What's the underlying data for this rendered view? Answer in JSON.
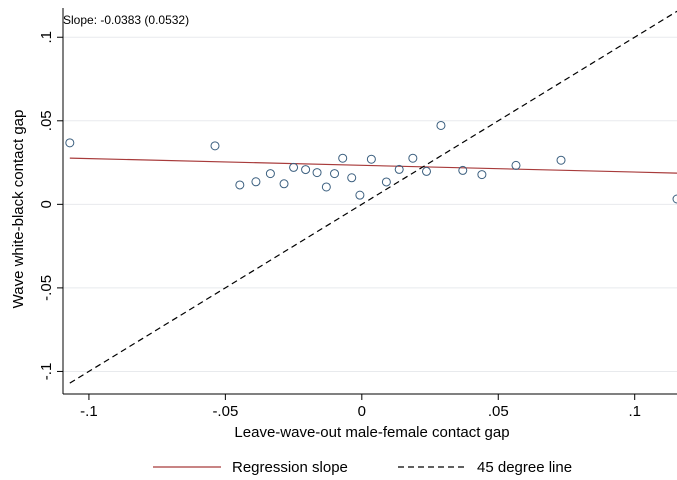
{
  "chart_data": {
    "type": "scatter",
    "annotation": "Slope: -0.0383 (0.0532)",
    "xlabel": "Leave-wave-out male-female contact gap",
    "ylabel": "Wave white-black contact gap",
    "xlim": [
      -0.1095,
      0.1155
    ],
    "ylim": [
      -0.1135,
      0.1175
    ],
    "x_ticks": [
      {
        "value": -0.1,
        "label": "-.1"
      },
      {
        "value": -0.05,
        "label": "-.05"
      },
      {
        "value": 0,
        "label": "0"
      },
      {
        "value": 0.05,
        "label": ".05"
      },
      {
        "value": 0.1,
        "label": ".1"
      }
    ],
    "y_ticks": [
      {
        "value": -0.1,
        "label": "-.1"
      },
      {
        "value": -0.05,
        "label": "-.05"
      },
      {
        "value": 0,
        "label": "0"
      },
      {
        "value": 0.05,
        "label": ".05"
      },
      {
        "value": 0.1,
        "label": ".1"
      }
    ],
    "grid": true,
    "legend_position": "bottom",
    "points": [
      {
        "x": -0.107,
        "y": 0.0368
      },
      {
        "x": -0.0538,
        "y": 0.035
      },
      {
        "x": -0.0447,
        "y": 0.0116
      },
      {
        "x": -0.0388,
        "y": 0.0135
      },
      {
        "x": -0.0335,
        "y": 0.0184
      },
      {
        "x": -0.0285,
        "y": 0.0123
      },
      {
        "x": -0.025,
        "y": 0.0221
      },
      {
        "x": -0.0206,
        "y": 0.0208
      },
      {
        "x": -0.0164,
        "y": 0.019
      },
      {
        "x": -0.013,
        "y": 0.0104
      },
      {
        "x": -0.01,
        "y": 0.0184
      },
      {
        "x": -0.007,
        "y": 0.0276
      },
      {
        "x": -0.0037,
        "y": 0.0159
      },
      {
        "x": -0.0007,
        "y": 0.0055
      },
      {
        "x": 0.0035,
        "y": 0.027
      },
      {
        "x": 0.009,
        "y": 0.0134
      },
      {
        "x": 0.0137,
        "y": 0.0209
      },
      {
        "x": 0.0187,
        "y": 0.0276
      },
      {
        "x": 0.0237,
        "y": 0.0197
      },
      {
        "x": 0.029,
        "y": 0.0472
      },
      {
        "x": 0.037,
        "y": 0.0203
      },
      {
        "x": 0.044,
        "y": 0.0178
      },
      {
        "x": 0.0565,
        "y": 0.0233
      },
      {
        "x": 0.073,
        "y": 0.0264
      },
      {
        "x": 0.1155,
        "y": 0.0032
      }
    ],
    "series": [
      {
        "name": "Regression slope",
        "color": "#a83b3b",
        "style": "solid",
        "x": [
          -0.107,
          0.1155
        ],
        "y": [
          0.0277,
          0.0187
        ]
      },
      {
        "name": "45 degree line",
        "color": "#000000",
        "style": "dashed",
        "x": [
          -0.107,
          0.1155
        ],
        "y": [
          -0.107,
          0.1155
        ]
      }
    ],
    "marker_color": "#3b5f7f"
  }
}
